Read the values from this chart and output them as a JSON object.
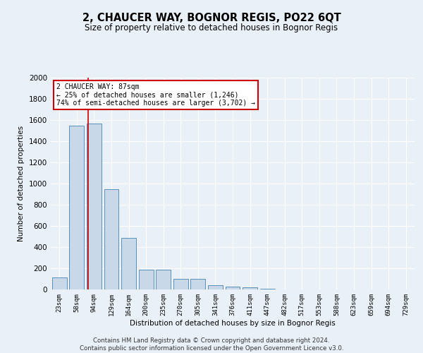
{
  "title": "2, CHAUCER WAY, BOGNOR REGIS, PO22 6QT",
  "subtitle": "Size of property relative to detached houses in Bognor Regis",
  "xlabel": "Distribution of detached houses by size in Bognor Regis",
  "ylabel": "Number of detached properties",
  "bar_color": "#c8d8e8",
  "bar_edge_color": "#5a90b8",
  "background_color": "#eaf0f8",
  "grid_color": "#ffffff",
  "fig_background": "#eaf0f8",
  "categories": [
    "23sqm",
    "58sqm",
    "94sqm",
    "129sqm",
    "164sqm",
    "200sqm",
    "235sqm",
    "270sqm",
    "305sqm",
    "341sqm",
    "376sqm",
    "411sqm",
    "447sqm",
    "482sqm",
    "517sqm",
    "553sqm",
    "588sqm",
    "623sqm",
    "659sqm",
    "694sqm",
    "729sqm"
  ],
  "values": [
    113,
    1545,
    1570,
    950,
    490,
    185,
    185,
    100,
    100,
    40,
    28,
    18,
    5,
    2,
    2,
    1,
    0,
    0,
    0,
    0,
    0
  ],
  "ylim": [
    0,
    2000
  ],
  "yticks": [
    0,
    200,
    400,
    600,
    800,
    1000,
    1200,
    1400,
    1600,
    1800,
    2000
  ],
  "red_line_x": 1.65,
  "annotation_text": "2 CHAUCER WAY: 87sqm\n← 25% of detached houses are smaller (1,246)\n74% of semi-detached houses are larger (3,702) →",
  "annotation_box_color": "#ffffff",
  "annotation_box_edge": "#cc0000",
  "footer_line1": "Contains HM Land Registry data © Crown copyright and database right 2024.",
  "footer_line2": "Contains public sector information licensed under the Open Government Licence v3.0."
}
